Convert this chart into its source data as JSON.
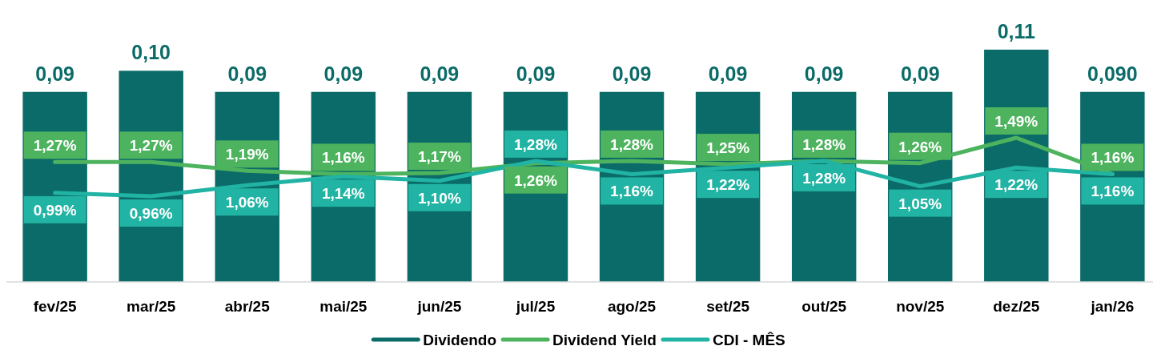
{
  "chart_data": {
    "type": "bar",
    "categories": [
      "fev/25",
      "mar/25",
      "abr/25",
      "mai/25",
      "jun/25",
      "jul/25",
      "ago/25",
      "set/25",
      "out/25",
      "nov/25",
      "dez/25",
      "jan/26"
    ],
    "series": [
      {
        "name": "Dividendo",
        "color": "#0b6b68",
        "values": [
          0.09,
          0.1,
          0.09,
          0.09,
          0.09,
          0.09,
          0.09,
          0.09,
          0.09,
          0.09,
          0.11,
          0.09
        ],
        "value_labels": [
          "0,09",
          "0,10",
          "0,09",
          "0,09",
          "0,09",
          "0,09",
          "0,09",
          "0,09",
          "0,09",
          "0,09",
          "0,11",
          "0,090"
        ]
      },
      {
        "name": "Dividend Yield",
        "type": "line",
        "axis": "y2",
        "color": "#4db35e",
        "values": [
          1.27,
          1.27,
          1.19,
          1.16,
          1.17,
          1.26,
          1.28,
          1.25,
          1.28,
          1.26,
          1.49,
          1.16
        ],
        "value_labels": [
          "1,27%",
          "1,27%",
          "1,19%",
          "1,16%",
          "1,17%",
          "1,26%",
          "1,28%",
          "1,25%",
          "1,28%",
          "1,26%",
          "1,49%",
          "1,16%"
        ]
      },
      {
        "name": "CDI - MÊS",
        "type": "line",
        "axis": "y2",
        "color": "#21b3a3",
        "values": [
          0.99,
          0.96,
          1.06,
          1.14,
          1.1,
          1.28,
          1.16,
          1.22,
          1.28,
          1.05,
          1.22,
          1.16
        ],
        "value_labels": [
          "0,99%",
          "0,96%",
          "1,06%",
          "1,14%",
          "1,10%",
          "1,28%",
          "1,16%",
          "1,22%",
          "1,28%",
          "1,05%",
          "1,22%",
          "1,16%"
        ]
      }
    ],
    "tick_labels": "x",
    "legend": "bottom"
  }
}
